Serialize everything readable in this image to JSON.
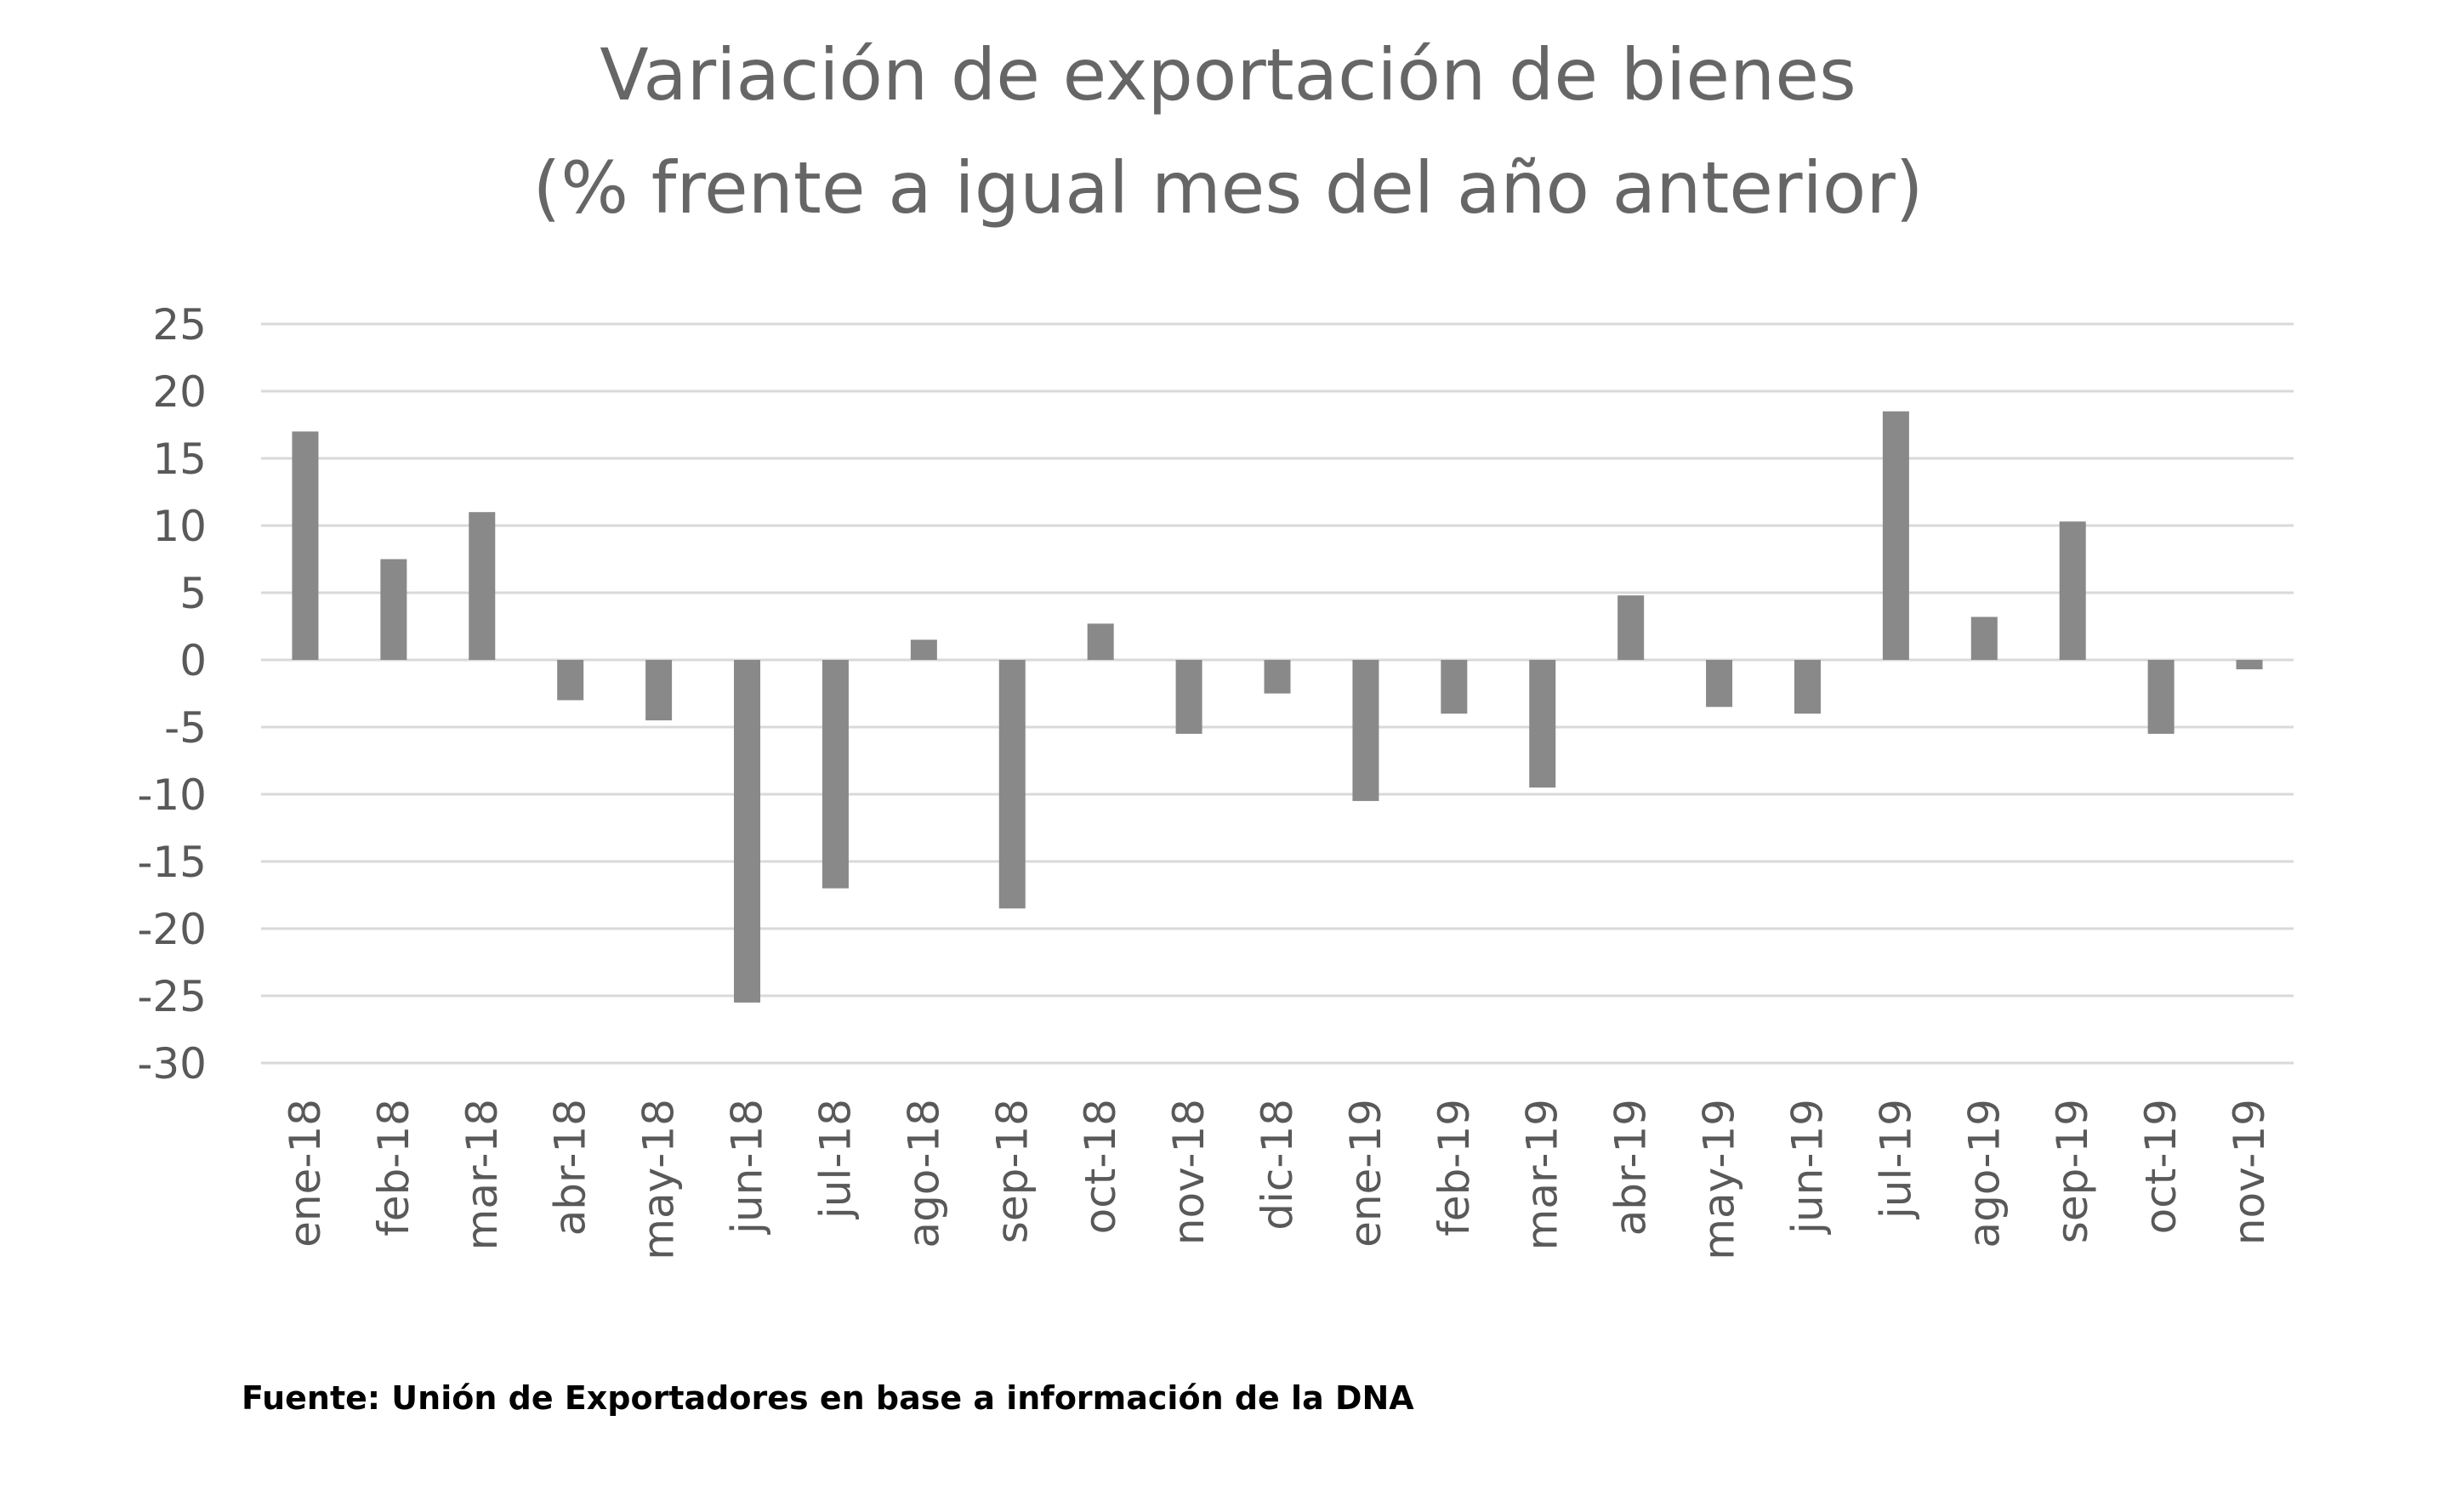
{
  "chart_data": {
    "type": "bar",
    "title": [
      "Variación de exportación de bienes",
      "(% frente a igual mes del año anterior)"
    ],
    "categories": [
      "ene-18",
      "feb-18",
      "mar-18",
      "abr-18",
      "may-18",
      "jun-18",
      "jul-18",
      "ago-18",
      "sep-18",
      "oct-18",
      "nov-18",
      "dic-18",
      "ene-19",
      "feb-19",
      "mar-19",
      "abr-19",
      "may-19",
      "jun-19",
      "jul-19",
      "ago-19",
      "sep-19",
      "oct-19",
      "nov-19"
    ],
    "values": [
      17,
      7.5,
      11,
      -3,
      -4.5,
      -25.5,
      -17,
      1.5,
      -18.5,
      2.7,
      -5.5,
      -2.5,
      -10.5,
      -4,
      -9.5,
      4.8,
      -3.5,
      -4,
      18.5,
      3.2,
      10.3,
      -5.5,
      -0.7
    ],
    "ylim": [
      -30,
      25
    ],
    "yticks": [
      25,
      20,
      15,
      10,
      5,
      0,
      -5,
      -10,
      -15,
      -20,
      -25,
      -30
    ],
    "ytick_labels": [
      "25",
      "20",
      "15",
      "10",
      "5",
      "0",
      "-5",
      "-10",
      "-15",
      "-20",
      "-25",
      "-30"
    ],
    "xlabel": "",
    "ylabel": "",
    "grid": true,
    "bar_color": "#898989",
    "grid_color": "#d9d9d9",
    "title_color": "#666666",
    "tick_color": "#595959"
  },
  "source_note": "Fuente: Unión de Exportadores en base a información de la DNA"
}
